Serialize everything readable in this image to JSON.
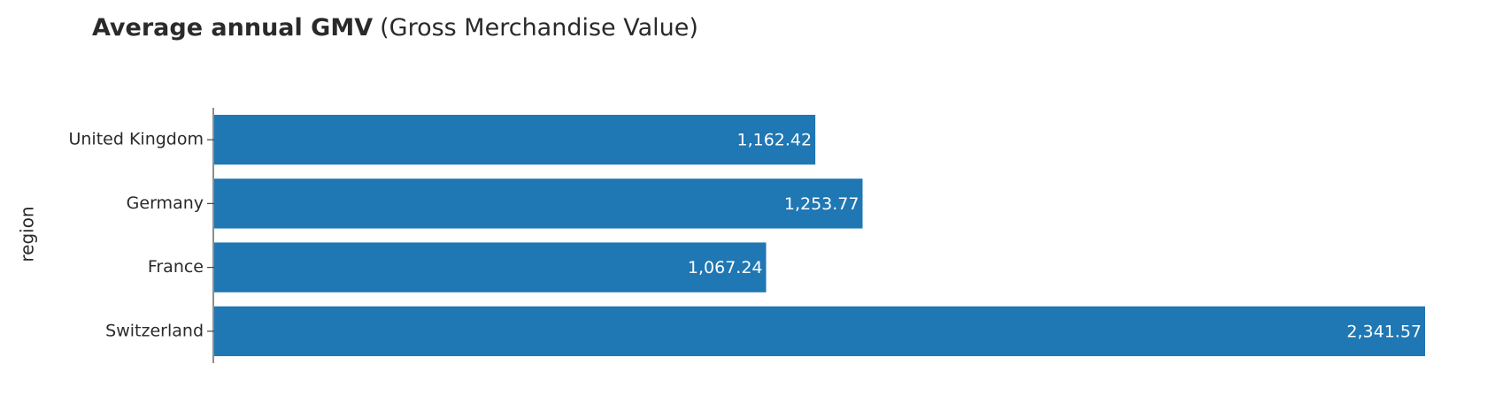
{
  "chart_data": {
    "type": "bar",
    "orientation": "horizontal",
    "title": "Average annual GMV",
    "subtitle": "(Gross Merchandise Value)",
    "y_label": "region",
    "categories": [
      "United Kingdom",
      "Germany",
      "France",
      "Switzerland"
    ],
    "values": [
      1162.42,
      1253.77,
      1067.24,
      2341.57
    ],
    "value_labels": [
      "1,162.42",
      "1,253.77",
      "1,067.24",
      "2,341.57"
    ],
    "color": "#1f77b4"
  }
}
